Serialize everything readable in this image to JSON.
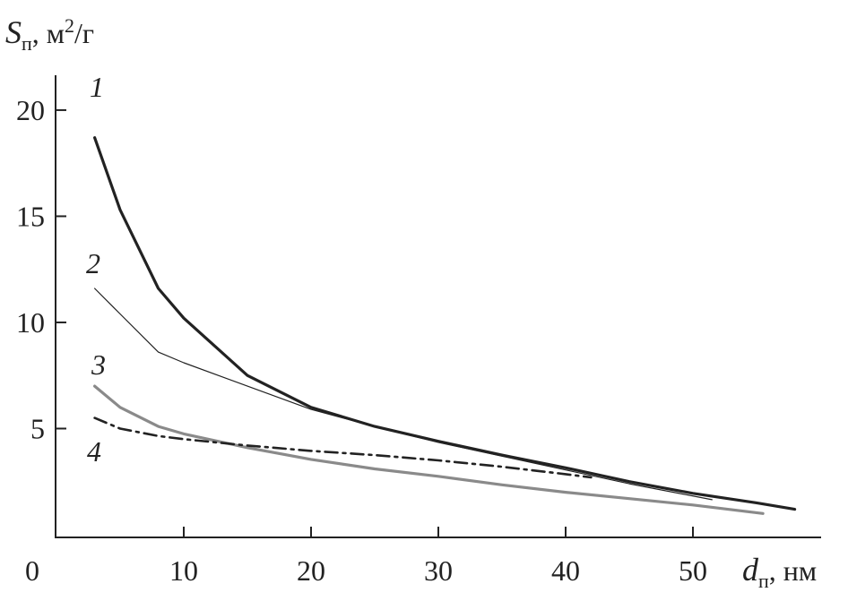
{
  "chart_data": {
    "type": "line",
    "ylabel_parts": [
      "S",
      "п",
      ", м",
      "2",
      "/г"
    ],
    "xlabel_parts": [
      "d",
      "п",
      ", нм"
    ],
    "xlim": [
      0,
      60
    ],
    "ylim": [
      0,
      21.6
    ],
    "xticks": [
      0,
      10,
      20,
      30,
      40,
      50
    ],
    "yticks": [
      5,
      10,
      15,
      20
    ],
    "grid": false,
    "series": [
      {
        "name": "1",
        "color": "#222222",
        "width": 3.2,
        "dash": "none",
        "x": [
          3,
          5,
          8,
          10,
          15,
          20,
          25,
          30,
          35,
          40,
          45,
          50,
          55,
          58
        ],
        "values": [
          18.7,
          15.3,
          11.6,
          10.2,
          7.5,
          6.0,
          5.1,
          4.4,
          3.75,
          3.15,
          2.5,
          1.95,
          1.5,
          1.2
        ]
      },
      {
        "name": "2",
        "color": "#222222",
        "width": 1.2,
        "dash": "none",
        "x": [
          3,
          5,
          8,
          10,
          15,
          20,
          25,
          30,
          35,
          40,
          45,
          51.5
        ],
        "values": [
          11.6,
          10.4,
          8.6,
          8.1,
          7.0,
          5.9,
          5.1,
          4.35,
          3.7,
          3.05,
          2.4,
          1.65
        ]
      },
      {
        "name": "3",
        "color": "#8a8a8a",
        "width": 3.2,
        "dash": "none",
        "x": [
          3,
          5,
          8,
          10,
          15,
          20,
          25,
          30,
          35,
          40,
          45,
          50,
          55.5
        ],
        "values": [
          7.0,
          6.0,
          5.1,
          4.75,
          4.1,
          3.55,
          3.1,
          2.75,
          2.35,
          2.0,
          1.7,
          1.4,
          1.0
        ]
      },
      {
        "name": "4",
        "color": "#222222",
        "width": 2.6,
        "dash": "14 6 3 6",
        "x": [
          3,
          5,
          8,
          10,
          15,
          20,
          25,
          30,
          35,
          40,
          42
        ],
        "values": [
          5.5,
          5.0,
          4.65,
          4.5,
          4.2,
          3.95,
          3.75,
          3.5,
          3.2,
          2.85,
          2.7
        ]
      }
    ]
  }
}
